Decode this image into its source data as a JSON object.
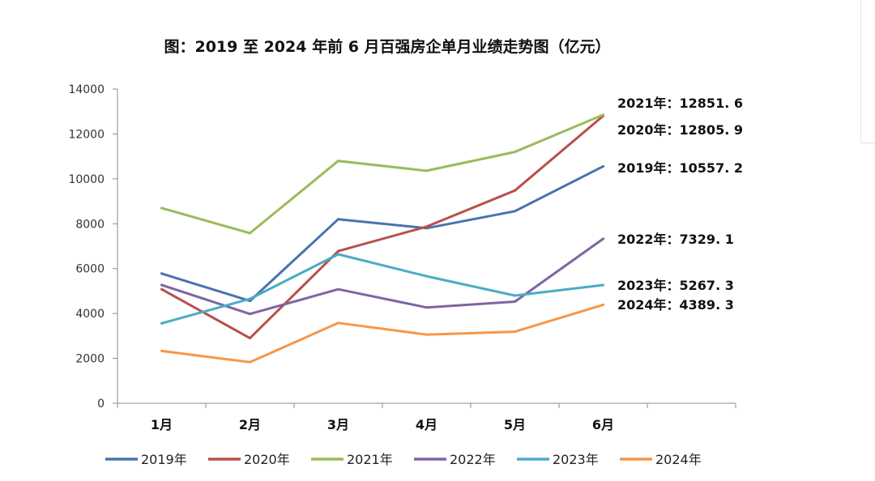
{
  "chart_data": {
    "type": "line",
    "title": "图：2019 至 2024 年前 6 月百强房企单月业绩走势图（亿元）",
    "xlabel": "",
    "ylabel": "",
    "categories": [
      "1月",
      "2月",
      "3月",
      "4月",
      "5月",
      "6月"
    ],
    "ylim": [
      0,
      14000
    ],
    "yticks": [
      "0",
      "2000",
      "4000",
      "6000",
      "8000",
      "10000",
      "12000",
      "14000"
    ],
    "grid": false,
    "legend_position": "bottom",
    "series": [
      {
        "name": "2019年",
        "color": "#4a72b0",
        "values": [
          5780,
          4560,
          8200,
          7800,
          8560,
          10557.2
        ],
        "end_label": "2019年：10557. 2"
      },
      {
        "name": "2020年",
        "color": "#b8504b",
        "values": [
          5080,
          2900,
          6780,
          7870,
          9480,
          12805.9
        ],
        "end_label": "2020年：12805. 9"
      },
      {
        "name": "2021年",
        "color": "#9bbb59",
        "values": [
          8700,
          7580,
          10800,
          10360,
          11200,
          12851.6
        ],
        "end_label": "2021年：12851. 6"
      },
      {
        "name": "2022年",
        "color": "#7e65a3",
        "values": [
          5270,
          3980,
          5080,
          4270,
          4530,
          7329.1
        ],
        "end_label": "2022年：7329. 1"
      },
      {
        "name": "2023年",
        "color": "#4aacc5",
        "values": [
          3560,
          4650,
          6640,
          5660,
          4800,
          5267.3
        ],
        "end_label": "2023年：5267. 3"
      },
      {
        "name": "2024年",
        "color": "#f79646",
        "values": [
          2330,
          1830,
          3580,
          3060,
          3190,
          4389.3
        ],
        "end_label": "2024年：4389. 3"
      }
    ]
  }
}
